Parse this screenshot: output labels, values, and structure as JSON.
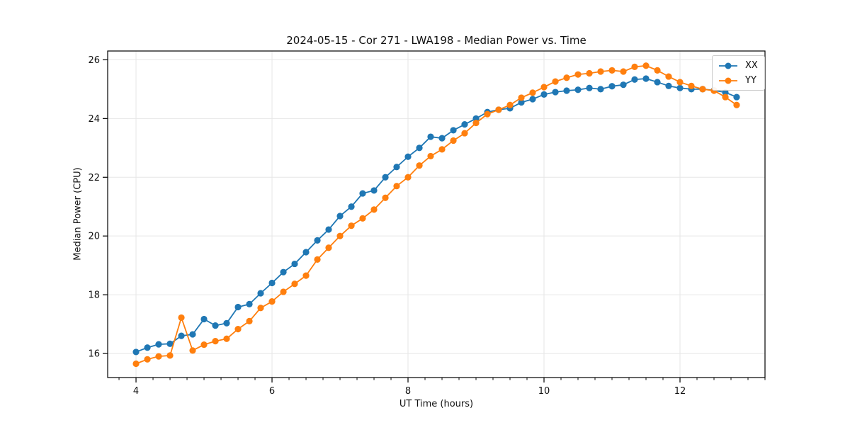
{
  "figure": {
    "title": "2024-05-15 - Cor 271 - LWA198 - Median Power vs. Time",
    "xlabel": "UT Time (hours)",
    "ylabel": "Median Power (CPU)"
  },
  "chart_data": {
    "type": "line",
    "title": "2024-05-15 - Cor 271 - LWA198 - Median Power vs. Time",
    "xlabel": "UT Time (hours)",
    "ylabel": "Median Power (CPU)",
    "grid": true,
    "grid_color": "#e6e6e6",
    "legend_position": "upper right",
    "x_ticks": [
      4,
      6,
      8,
      10,
      12
    ],
    "y_ticks": [
      16,
      18,
      20,
      22,
      24,
      26
    ],
    "x_minor_step": 0.25,
    "xlim": [
      3.583,
      13.25
    ],
    "ylim": [
      15.18,
      26.3
    ],
    "x": [
      4.0,
      4.167,
      4.333,
      4.5,
      4.667,
      4.833,
      5.0,
      5.167,
      5.333,
      5.5,
      5.667,
      5.833,
      6.0,
      6.167,
      6.333,
      6.5,
      6.667,
      6.833,
      7.0,
      7.167,
      7.333,
      7.5,
      7.667,
      7.833,
      8.0,
      8.167,
      8.333,
      8.5,
      8.667,
      8.833,
      9.0,
      9.167,
      9.333,
      9.5,
      9.667,
      9.833,
      10.0,
      10.167,
      10.333,
      10.5,
      10.667,
      10.833,
      11.0,
      11.167,
      11.333,
      11.5,
      11.667,
      11.833,
      12.0,
      12.167,
      12.333,
      12.5,
      12.667,
      12.833
    ],
    "series": [
      {
        "name": "XX",
        "color": "#1f77b4",
        "values": [
          16.05,
          16.2,
          16.31,
          16.33,
          16.6,
          16.65,
          17.17,
          16.95,
          17.03,
          17.58,
          17.68,
          18.05,
          18.4,
          18.77,
          19.05,
          19.45,
          19.85,
          20.22,
          20.68,
          21.0,
          21.45,
          21.55,
          22.0,
          22.35,
          22.7,
          23.0,
          23.38,
          23.33,
          23.6,
          23.8,
          24.0,
          24.22,
          24.3,
          24.35,
          24.55,
          24.66,
          24.82,
          24.9,
          24.95,
          24.98,
          25.04,
          25.0,
          25.1,
          25.15,
          25.33,
          25.36,
          25.24,
          25.11,
          25.04,
          25.0,
          25.0,
          24.96,
          24.89,
          24.73
        ]
      },
      {
        "name": "YY",
        "color": "#ff7f0e",
        "values": [
          15.65,
          15.8,
          15.9,
          15.93,
          17.22,
          16.1,
          16.3,
          16.42,
          16.5,
          16.83,
          17.1,
          17.55,
          17.77,
          18.1,
          18.37,
          18.65,
          19.2,
          19.6,
          20.0,
          20.35,
          20.6,
          20.9,
          21.3,
          21.7,
          22.0,
          22.4,
          22.72,
          22.95,
          23.25,
          23.5,
          23.85,
          24.15,
          24.3,
          24.46,
          24.71,
          24.88,
          25.07,
          25.26,
          25.39,
          25.5,
          25.54,
          25.6,
          25.64,
          25.6,
          25.76,
          25.8,
          25.64,
          25.43,
          25.24,
          25.11,
          25.0,
          24.95,
          24.73,
          24.46
        ]
      }
    ]
  }
}
